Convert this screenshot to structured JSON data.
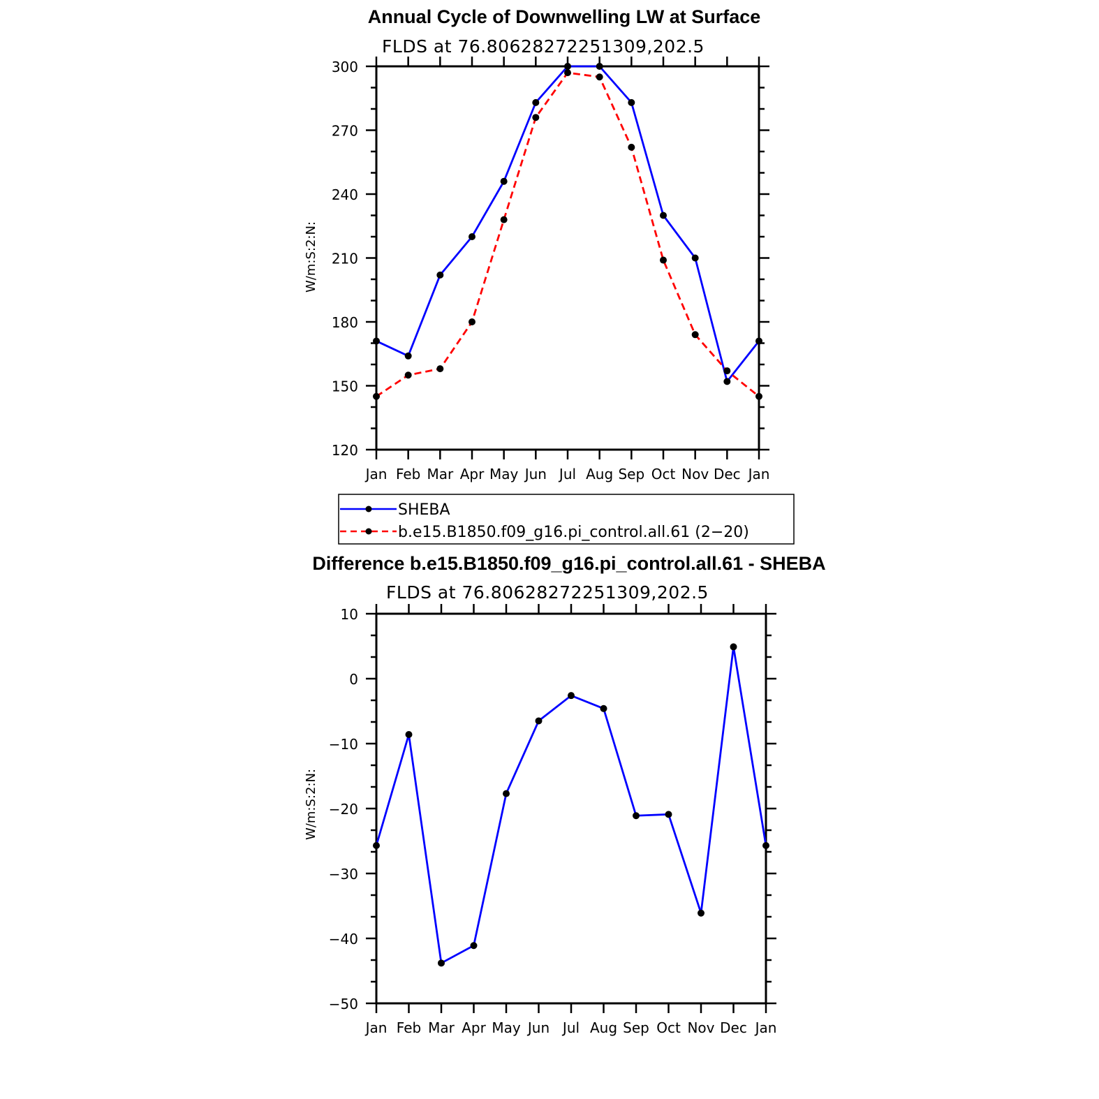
{
  "chart_data": [
    {
      "type": "line",
      "title": "Annual Cycle of Downwelling LW at Surface",
      "subtitle": "FLDS at 76.80628272251309,202.5",
      "ylabel": "W/m:S:2:N:",
      "xlabel": "",
      "categories": [
        "Jan",
        "Feb",
        "Mar",
        "Apr",
        "May",
        "Jun",
        "Jul",
        "Aug",
        "Sep",
        "Oct",
        "Nov",
        "Dec",
        "Jan"
      ],
      "ylim": [
        120,
        300
      ],
      "yticks": [
        120,
        150,
        180,
        210,
        240,
        270,
        300
      ],
      "ytick_labels": [
        "120",
        "150",
        "180",
        "210",
        "240",
        "270",
        "300"
      ],
      "series": [
        {
          "name": "SHEBA",
          "color": "#0000ff",
          "dash": "solid",
          "values": [
            171,
            164,
            202,
            220,
            246,
            283,
            300,
            300,
            283,
            230,
            210,
            152,
            171
          ]
        },
        {
          "name": "b.e15.B1850.f09_g16.pi_control.all.61 (2−20)",
          "color": "#ff0000",
          "dash": "dashed",
          "values": [
            145,
            155,
            158,
            180,
            228,
            276,
            297,
            295,
            262,
            209,
            174,
            157,
            145
          ]
        }
      ],
      "legend": "below"
    },
    {
      "type": "line",
      "title": "Difference b.e15.B1850.f09_g16.pi_control.all.61 - SHEBA",
      "subtitle": "FLDS at 76.80628272251309,202.5",
      "ylabel": "W/m:S:2:N:",
      "xlabel": "",
      "categories": [
        "Jan",
        "Feb",
        "Mar",
        "Apr",
        "May",
        "Jun",
        "Jul",
        "Aug",
        "Sep",
        "Oct",
        "Nov",
        "Dec",
        "Jan"
      ],
      "ylim": [
        -50,
        10
      ],
      "yticks": [
        -50,
        -40,
        -30,
        -20,
        -10,
        0,
        10
      ],
      "ytick_labels": [
        "−50",
        "−40",
        "−30",
        "−20",
        "−10",
        "0",
        "10"
      ],
      "series": [
        {
          "color": "#0000ff",
          "dash": "solid",
          "values": [
            -25.7,
            -8.6,
            -43.8,
            -41.1,
            -17.7,
            -6.5,
            -2.6,
            -4.6,
            -21.1,
            -20.9,
            -36.1,
            4.9,
            -25.7
          ]
        }
      ]
    }
  ]
}
